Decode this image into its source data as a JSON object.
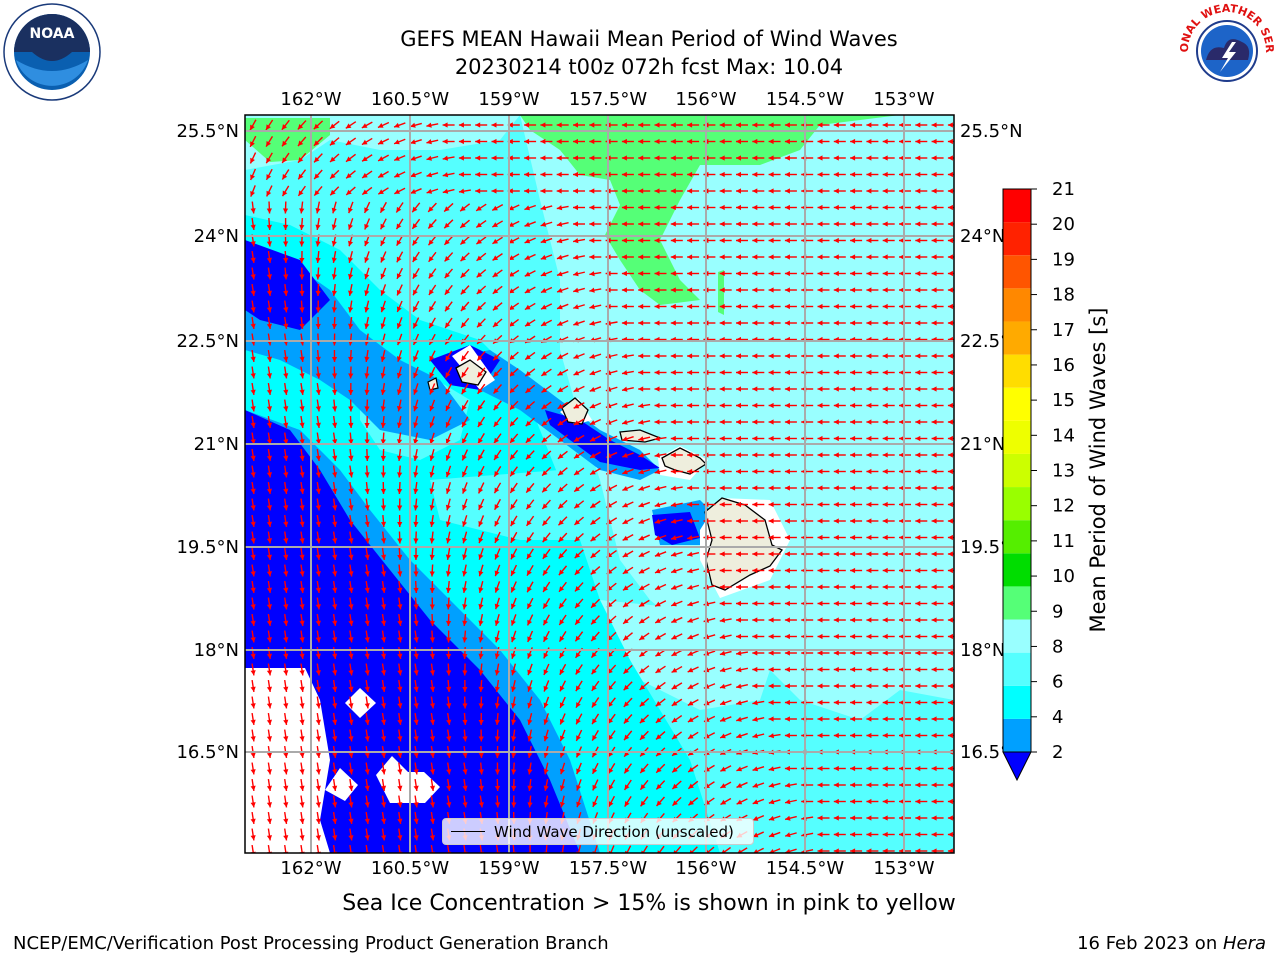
{
  "header": {
    "title_line1": "GEFS MEAN Hawaii Mean Period of Wind Waves",
    "title_line2": "20230214 t00z 072h fcst   Max: 10.04"
  },
  "logos": {
    "left": "NOAA",
    "right": "NATIONAL WEATHER SERVICE"
  },
  "map": {
    "lon_labels": [
      "162°W",
      "160.5°W",
      "159°W",
      "157.5°W",
      "156°W",
      "154.5°W",
      "153°W"
    ],
    "lat_labels": [
      "25.5°N",
      "24°N",
      "22.5°N",
      "21°N",
      "19.5°N",
      "18°N",
      "16.5°N"
    ],
    "legend_label": "Wind Wave Direction (unscaled)",
    "arrow_color": "#ff0000",
    "land_color": "#eeeedd"
  },
  "colorbar": {
    "label": "Mean Period of Wind Waves [s]",
    "ticks": [
      "2",
      "4",
      "6",
      "8",
      "9",
      "10",
      "11",
      "12",
      "13",
      "14",
      "15",
      "16",
      "17",
      "18",
      "19",
      "20",
      "21"
    ],
    "colors": [
      "#0000ff",
      "#00a0ff",
      "#00ffff",
      "#55ffff",
      "#99ffff",
      "#55ff77",
      "#00dd00",
      "#55ee00",
      "#99ff00",
      "#ccff00",
      "#eeff00",
      "#ffff00",
      "#ffdd00",
      "#ffaa00",
      "#ff8800",
      "#ff5500",
      "#ff2200",
      "#ff0000"
    ]
  },
  "subnote": "Sea Ice Concentration > 15% is shown in pink to yellow",
  "footer": {
    "left": "NCEP/EMC/Verification Post Processing Product Generation Branch",
    "right_prefix": "16 Feb 2023 on ",
    "right_italic": "Hera"
  }
}
